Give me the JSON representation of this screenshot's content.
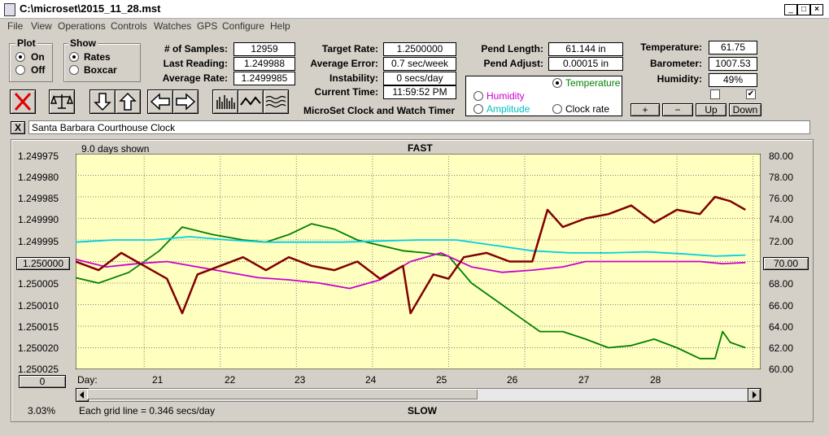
{
  "window": {
    "title": "C:\\microset\\2015_11_28.mst",
    "btn_min": "_",
    "btn_max": "□",
    "btn_close": "×"
  },
  "menu": [
    "File",
    "View",
    "Operations",
    "Controls",
    "Watches",
    "GPS",
    "Configure",
    "Help"
  ],
  "plot_group": {
    "title": "Plot",
    "on": "On",
    "off": "Off",
    "selected": "On"
  },
  "show_group": {
    "title": "Show",
    "rates": "Rates",
    "boxcar": "Boxcar",
    "selected": "Rates"
  },
  "stats": {
    "samples_label": "# of Samples:",
    "samples": "12959",
    "last_label": "Last Reading:",
    "last": "1.249988",
    "avg_label": "Average Rate:",
    "avg": "1.2499985",
    "target_label": "Target Rate:",
    "target": "1.2500000",
    "avgerr_label": "Average Error:",
    "avgerr": "0.7 sec/week",
    "instab_label": "Instability:",
    "instab": "0 secs/day",
    "time_label": "Current Time:",
    "time": "11:59:52 PM",
    "app_name": "MicroSet Clock and Watch Timer",
    "pendlen_label": "Pend Length:",
    "pendlen": "61.144 in",
    "pendadj_label": "Pend Adjust:",
    "pendadj": "0.00015 in",
    "temp_label": "Temperature:",
    "temp": "61.75",
    "baro_label": "Barometer:",
    "baro": "1007.53",
    "hum_label": "Humidity:",
    "hum": "49%"
  },
  "aux_selector": {
    "temperature": "Temperature",
    "humidity": "Humidity",
    "amplitude": "Amplitude",
    "clock_rate": "Clock rate",
    "selected": "Temperature",
    "colors": {
      "temperature": "#008000",
      "humidity": "#cc00cc",
      "amplitude": "#00c0c0",
      "clock_rate": "#000000"
    }
  },
  "aux_buttons": {
    "plus": "+",
    "minus": "−",
    "up": "Up",
    "down": "Down"
  },
  "checkboxes": {
    "first_checked": false,
    "second_checked": true
  },
  "clock_name": {
    "close": "X",
    "value": "Santa Barbara Courthouse Clock"
  },
  "chart": {
    "days_shown": "9.0 days shown",
    "top_label": "FAST",
    "bottom_label": "SLOW",
    "left_button": "1.250000",
    "right_button": "70.00",
    "bottom_left_button": "0",
    "percent": "3.03%",
    "grid_note": "Each grid line = 0.346 secs/day",
    "day_label": "Day:",
    "left_ticks": [
      "1.249975",
      "1.249980",
      "1.249985",
      "1.249990",
      "1.249995",
      "",
      "1.250005",
      "1.250010",
      "1.250015",
      "1.250020",
      "1.250025"
    ],
    "right_ticks": [
      "80.00",
      "78.00",
      "76.00",
      "74.00",
      "72.00",
      "",
      "68.00",
      "66.00",
      "64.00",
      "62.00",
      "60.00"
    ],
    "days": [
      "21",
      "22",
      "23",
      "24",
      "25",
      "26",
      "27",
      "28"
    ]
  },
  "chart_data": {
    "type": "line",
    "x_unit": "day",
    "xlim": [
      20.1,
      29.1
    ],
    "ylim_left": [
      1.250025,
      1.249975
    ],
    "ylim_right": [
      60,
      80
    ],
    "grid": true,
    "series": [
      {
        "axis": "right",
        "color": "#008000",
        "x": [
          20.1,
          20.4,
          20.8,
          21.2,
          21.5,
          21.9,
          22.3,
          22.6,
          22.9,
          23.2,
          23.5,
          23.8,
          24.1,
          24.4,
          24.7,
          25.0,
          25.3,
          25.6,
          25.9,
          26.2,
          26.5,
          26.8,
          27.1,
          27.4,
          27.7,
          28.0,
          28.3,
          28.5,
          28.6,
          28.7,
          28.9
        ],
        "y": [
          68.5,
          68.0,
          69.0,
          71.0,
          73.2,
          72.5,
          72.0,
          71.8,
          72.5,
          73.5,
          73.0,
          72.0,
          71.5,
          71.0,
          70.8,
          70.5,
          68.0,
          66.5,
          65.0,
          63.5,
          63.5,
          62.8,
          62.0,
          62.2,
          62.8,
          62.0,
          61.0,
          61.0,
          63.5,
          62.5,
          62.0
        ]
      },
      {
        "axis": "right",
        "color": "#00d0e0",
        "x": [
          20.1,
          20.6,
          21.1,
          21.6,
          22.1,
          22.6,
          23.1,
          23.6,
          24.1,
          24.6,
          25.1,
          25.6,
          26.1,
          26.6,
          27.1,
          27.6,
          28.1,
          28.5,
          28.9
        ],
        "y": [
          71.8,
          72.0,
          72.0,
          72.3,
          72.0,
          71.8,
          71.8,
          71.8,
          71.9,
          72.0,
          72.0,
          71.5,
          71.0,
          70.8,
          70.8,
          70.9,
          70.7,
          70.5,
          70.6
        ]
      },
      {
        "axis": "right",
        "color": "#cc00cc",
        "x": [
          20.1,
          20.5,
          20.9,
          21.3,
          21.7,
          22.1,
          22.5,
          22.9,
          23.3,
          23.7,
          24.1,
          24.5,
          24.9,
          25.3,
          25.7,
          26.1,
          26.5,
          26.8,
          27.1,
          27.5,
          27.9,
          28.3,
          28.6,
          28.9
        ],
        "y": [
          70.2,
          69.5,
          69.8,
          70.0,
          69.5,
          69.0,
          68.5,
          68.3,
          68.0,
          67.5,
          68.3,
          70.0,
          70.8,
          69.5,
          69.0,
          69.2,
          69.5,
          70.0,
          70.0,
          70.0,
          70.0,
          70.0,
          69.8,
          69.9
        ]
      },
      {
        "axis": "left",
        "color": "#800000",
        "x": [
          20.1,
          20.4,
          20.7,
          21.0,
          21.3,
          21.5,
          21.7,
          22.0,
          22.3,
          22.6,
          22.9,
          23.2,
          23.5,
          23.8,
          24.1,
          24.4,
          24.5,
          24.8,
          25.0,
          25.2,
          25.5,
          25.8,
          26.1,
          26.3,
          26.5,
          26.8,
          27.1,
          27.4,
          27.7,
          28.0,
          28.3,
          28.5,
          28.7,
          28.9
        ],
        "y": [
          1.25,
          1.250002,
          1.249998,
          1.250001,
          1.250004,
          1.250012,
          1.250003,
          1.250001,
          1.249999,
          1.250002,
          1.249999,
          1.250001,
          1.250002,
          1.25,
          1.250004,
          1.250001,
          1.250012,
          1.250003,
          1.250004,
          1.249999,
          1.249998,
          1.25,
          1.25,
          1.249988,
          1.249992,
          1.24999,
          1.249989,
          1.249987,
          1.249991,
          1.249988,
          1.249989,
          1.249985,
          1.249986,
          1.249988
        ]
      }
    ]
  }
}
